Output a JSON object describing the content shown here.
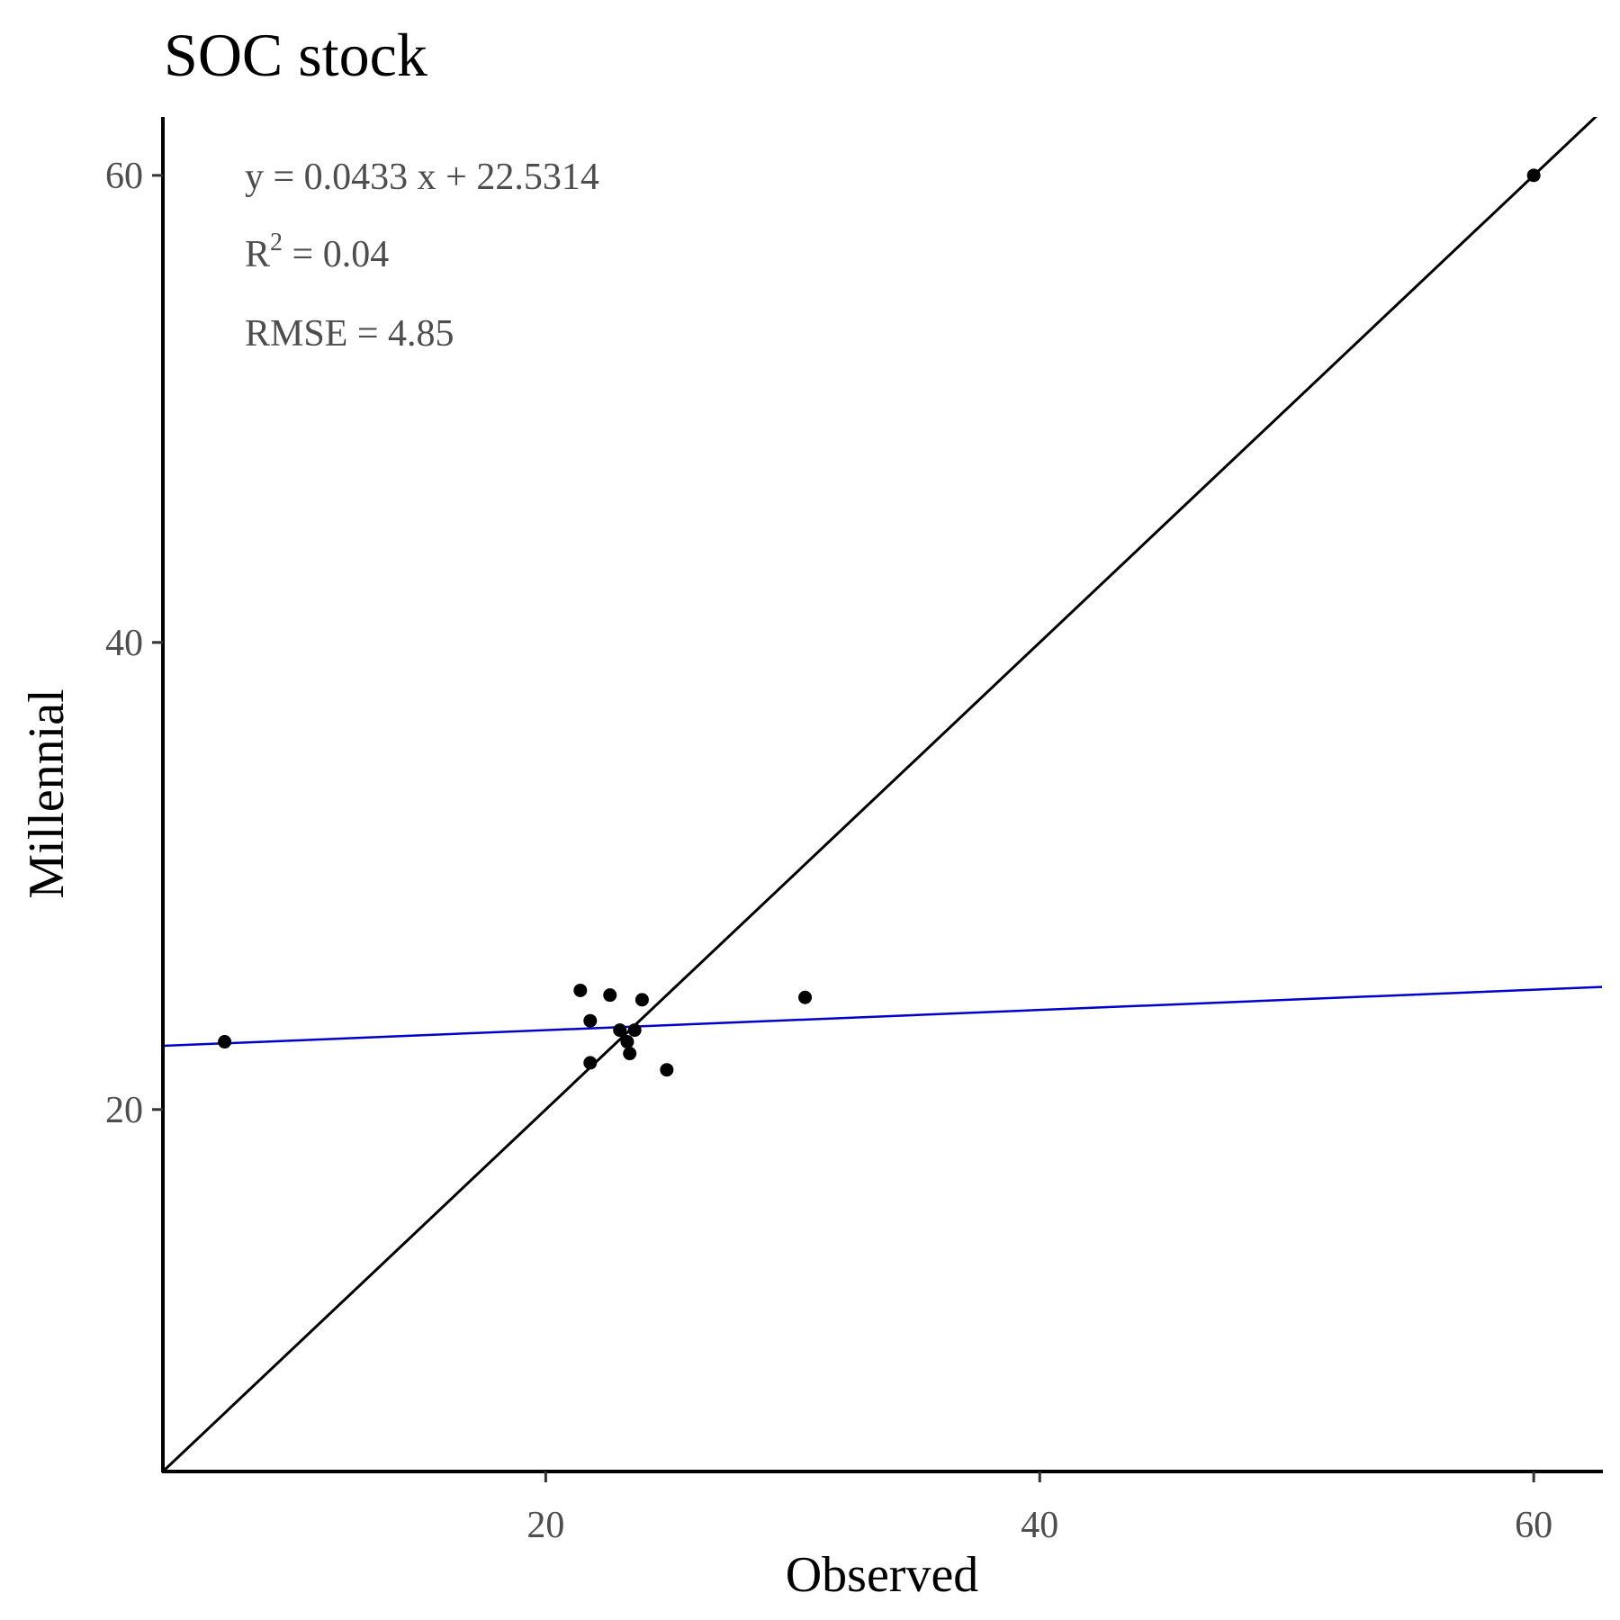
{
  "chart_data": {
    "type": "scatter",
    "title": "SOC stock",
    "xlabel": "Observed",
    "ylabel": "Millennial",
    "xlim": [
      4.5,
      62.8
    ],
    "ylim": [
      4.5,
      62.5
    ],
    "x_ticks": [
      20,
      40,
      60
    ],
    "y_ticks": [
      20,
      40,
      60
    ],
    "grid": false,
    "points": [
      {
        "x": 7.0,
        "y": 22.9
      },
      {
        "x": 21.4,
        "y": 25.1
      },
      {
        "x": 21.8,
        "y": 23.8
      },
      {
        "x": 21.8,
        "y": 22.0
      },
      {
        "x": 22.6,
        "y": 24.9
      },
      {
        "x": 23.0,
        "y": 23.4
      },
      {
        "x": 23.3,
        "y": 22.9
      },
      {
        "x": 23.4,
        "y": 22.4
      },
      {
        "x": 23.6,
        "y": 23.4
      },
      {
        "x": 23.9,
        "y": 24.7
      },
      {
        "x": 24.9,
        "y": 21.7
      },
      {
        "x": 30.5,
        "y": 24.8
      },
      {
        "x": 60.0,
        "y": 60.0
      }
    ],
    "reference_line": {
      "slope": 1,
      "intercept": 0,
      "color": "#000000"
    },
    "fit_line": {
      "slope": 0.0433,
      "intercept": 22.5314,
      "color": "#0000cc"
    },
    "annotations": {
      "equation": "y = 0.0433 x +  22.5314",
      "r2_prefix": "R",
      "r2_sup": "2",
      "r2_value": " = 0.04",
      "rmse": "RMSE = 4.85"
    }
  }
}
